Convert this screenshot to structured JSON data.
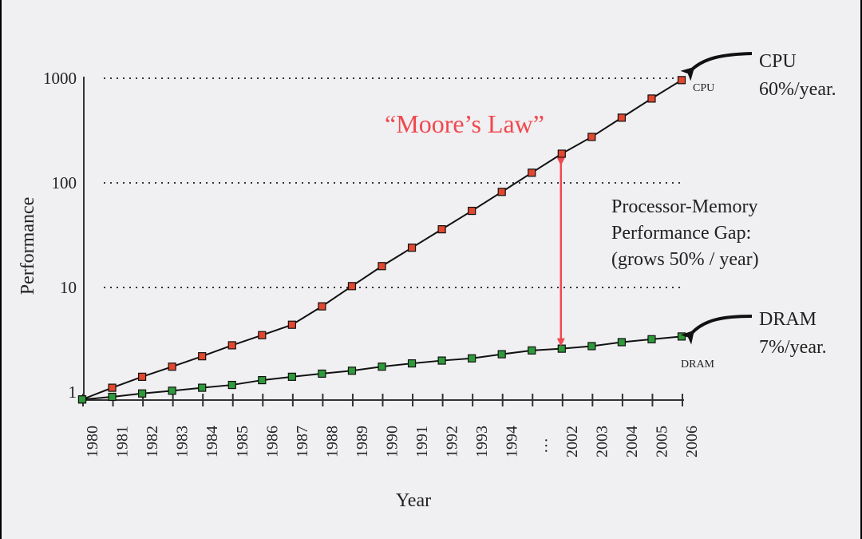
{
  "chart_data": {
    "type": "line",
    "ylabel": "Performance",
    "xlabel": "Year",
    "yscale": "log",
    "ylim": [
      0.85,
      1000
    ],
    "y_ticks": [
      "1",
      "10",
      "100",
      "1000"
    ],
    "y_tick_values": [
      1,
      10,
      100,
      1000
    ],
    "grid": "dotted horizontal at 10, 100, 1000",
    "categories": [
      "1980",
      "1981",
      "1982",
      "1983",
      "1984",
      "1985",
      "1986",
      "1987",
      "1988",
      "1989",
      "1990",
      "1991",
      "1992",
      "1993",
      "1994",
      "…",
      "2002",
      "2003",
      "2004",
      "2005",
      "2006"
    ],
    "series": [
      {
        "name": "CPU",
        "color": "#e2472f",
        "values": [
          0.85,
          1.1,
          1.4,
          1.75,
          2.2,
          2.8,
          3.5,
          4.4,
          6.6,
          10.3,
          16,
          24,
          36,
          54,
          82,
          125,
          190,
          275,
          420,
          640,
          960
        ]
      },
      {
        "name": "DRAM",
        "color": "#2f9a3a",
        "values": [
          0.85,
          0.9,
          0.97,
          1.03,
          1.1,
          1.17,
          1.3,
          1.4,
          1.5,
          1.6,
          1.75,
          1.88,
          2.0,
          2.1,
          2.3,
          2.5,
          2.6,
          2.75,
          3.0,
          3.2,
          3.4
        ]
      }
    ],
    "annotations": {
      "moore": "“Moore’s Law”",
      "cpu_small": "CPU",
      "dram_small": "DRAM",
      "cpu_title": "CPU",
      "cpu_rate": "60%/year.",
      "dram_title": "DRAM",
      "dram_rate": "7%/year.",
      "gap_line1": "Processor-Memory",
      "gap_line2": "Performance Gap:",
      "gap_line3": "(grows 50% / year)"
    },
    "colors": {
      "gap_arrow": "#f0484f",
      "moore_text": "#f0484f"
    }
  }
}
